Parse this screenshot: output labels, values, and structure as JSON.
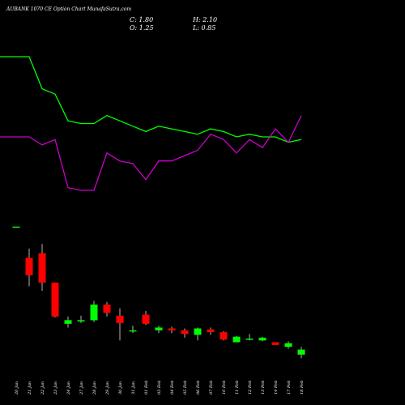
{
  "chart_data": {
    "type": "candlestick",
    "title": "AUBANK 1070  CE Option  Chart MunafaSutra.com",
    "ohlc_labels": {
      "c": "C: 1.80",
      "h": "H: 2.10",
      "o": "O: 1.25",
      "l": "L: 0.85"
    },
    "categories": [
      "20 Jan",
      "21 Jan",
      "22 Jan",
      "23 Jan",
      "24 Jan",
      "27 Jan",
      "28 Jan",
      "29 Jan",
      "30 Jan",
      "31 Jan",
      "01 Feb",
      "03 Feb",
      "04 Feb",
      "05 Feb",
      "06 Feb",
      "07 Feb",
      "10 Feb",
      "11 Feb",
      "12 Feb",
      "13 Feb",
      "14 Feb",
      "17 Feb",
      "18 Feb"
    ],
    "candles": [
      {
        "o": 15.2,
        "h": 15.2,
        "l": 15.2,
        "c": 15.2
      },
      {
        "o": 11.8,
        "h": 12.8,
        "l": 8.7,
        "c": 9.9
      },
      {
        "o": 12.3,
        "h": 13.3,
        "l": 8.2,
        "c": 9.1
      },
      {
        "o": 9.1,
        "h": 9.1,
        "l": 5.3,
        "c": 5.4
      },
      {
        "o": 4.6,
        "h": 5.4,
        "l": 4.2,
        "c": 5.0
      },
      {
        "o": 4.9,
        "h": 5.5,
        "l": 4.7,
        "c": 5.0
      },
      {
        "o": 5.0,
        "h": 7.1,
        "l": 4.8,
        "c": 6.7
      },
      {
        "o": 6.7,
        "h": 7.0,
        "l": 5.4,
        "c": 5.8
      },
      {
        "o": 5.5,
        "h": 6.3,
        "l": 2.8,
        "c": 4.7
      },
      {
        "o": 3.9,
        "h": 4.4,
        "l": 3.6,
        "c": 3.9
      },
      {
        "o": 5.6,
        "h": 6.0,
        "l": 4.5,
        "c": 4.6
      },
      {
        "o": 3.9,
        "h": 4.4,
        "l": 3.6,
        "c": 4.2
      },
      {
        "o": 4.1,
        "h": 4.3,
        "l": 3.6,
        "c": 3.9
      },
      {
        "o": 3.9,
        "h": 4.1,
        "l": 3.1,
        "c": 3.5
      },
      {
        "o": 3.4,
        "h": 4.2,
        "l": 2.8,
        "c": 4.1
      },
      {
        "o": 4.0,
        "h": 4.2,
        "l": 3.4,
        "c": 3.7
      },
      {
        "o": 3.7,
        "h": 3.8,
        "l": 2.8,
        "c": 2.9
      },
      {
        "o": 2.6,
        "h": 3.3,
        "l": 2.6,
        "c": 3.2
      },
      {
        "o": 2.9,
        "h": 3.5,
        "l": 2.8,
        "c": 3.0
      },
      {
        "o": 2.8,
        "h": 3.2,
        "l": 2.7,
        "c": 3.1
      },
      {
        "o": 2.6,
        "h": 2.6,
        "l": 2.3,
        "c": 2.3
      },
      {
        "o": 2.1,
        "h": 2.7,
        "l": 1.9,
        "c": 2.5
      },
      {
        "o": 1.25,
        "h": 2.1,
        "l": 0.85,
        "c": 1.8
      }
    ],
    "series": [
      {
        "color": "#00ff00",
        "values": [
          100,
          100,
          88,
          86,
          76,
          75,
          75,
          78,
          76,
          74,
          72,
          74,
          73,
          72,
          71,
          73,
          72,
          70,
          71,
          70,
          70,
          68,
          69
        ]
      },
      {
        "color": "#cc00cc",
        "values": [
          70,
          70,
          67,
          69,
          51,
          50,
          50,
          64,
          61,
          60,
          54,
          61,
          61,
          63,
          65,
          71,
          69,
          64,
          69,
          66,
          73,
          68,
          78
        ]
      }
    ],
    "colors": {
      "up": "#00ff00",
      "down": "#ff0000",
      "background": "#000000"
    }
  }
}
